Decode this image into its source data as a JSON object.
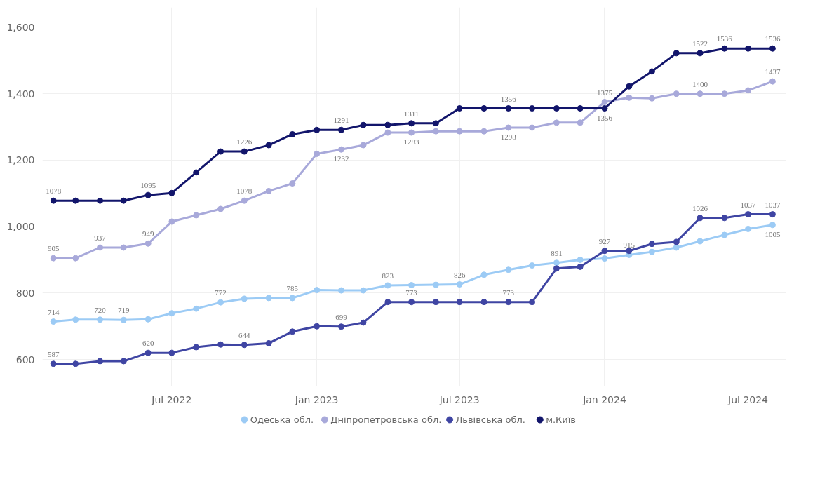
{
  "chart_data": {
    "type": "line",
    "x": [
      "2022-02",
      "2022-03",
      "2022-04",
      "2022-05",
      "2022-06",
      "2022-07",
      "2022-08",
      "2022-09",
      "2022-10",
      "2022-11",
      "2022-12",
      "2023-01",
      "2023-02",
      "2023-03",
      "2023-04",
      "2023-05",
      "2023-06",
      "2023-07",
      "2023-08",
      "2023-09",
      "2023-10",
      "2023-11",
      "2023-12",
      "2024-01",
      "2024-02",
      "2024-03",
      "2024-04",
      "2024-05",
      "2024-06",
      "2024-07",
      "2024-08"
    ],
    "series": [
      {
        "name": "Одеська обл.",
        "color": "#9ccbf5",
        "values": [
          714,
          720,
          720,
          719,
          721,
          739,
          753,
          772,
          783,
          785,
          785,
          809,
          808,
          808,
          823,
          824,
          825,
          826,
          855,
          870,
          883,
          891,
          900,
          904,
          915,
          924,
          937,
          956,
          975,
          993,
          1005
        ],
        "value_labels": [
          "714",
          null,
          "720",
          "719",
          null,
          null,
          null,
          "772",
          null,
          null,
          "785",
          null,
          null,
          null,
          "823",
          null,
          null,
          "826",
          null,
          null,
          null,
          "891",
          null,
          null,
          "915",
          null,
          null,
          null,
          null,
          null,
          "1005"
        ]
      },
      {
        "name": "Дніпропетровська обл.",
        "color": "#a8a9da",
        "values": [
          905,
          905,
          937,
          937,
          949,
          1015,
          1034,
          1053,
          1078,
          1107,
          1130,
          1219,
          1232,
          1245,
          1283,
          1283,
          1287,
          1287,
          1287,
          1298,
          1298,
          1313,
          1313,
          1375,
          1388,
          1386,
          1400,
          1400,
          1400,
          1410,
          1437
        ],
        "value_labels": [
          "905",
          null,
          "937",
          null,
          "949",
          null,
          null,
          null,
          "1078",
          null,
          null,
          null,
          "1232",
          null,
          null,
          "1283",
          null,
          null,
          null,
          "1298",
          null,
          null,
          null,
          "1375",
          null,
          null,
          null,
          "1400",
          null,
          null,
          "1437"
        ]
      },
      {
        "name": "Львівська обл.",
        "color": "#3f45a3",
        "values": [
          587,
          587,
          595,
          595,
          620,
          620,
          637,
          645,
          644,
          649,
          684,
          700,
          699,
          711,
          773,
          773,
          773,
          773,
          773,
          773,
          773,
          874,
          879,
          927,
          927,
          948,
          954,
          1026,
          1026,
          1037,
          1037
        ],
        "value_labels": [
          "587",
          null,
          null,
          null,
          "620",
          null,
          null,
          null,
          "644",
          null,
          null,
          null,
          "699",
          null,
          null,
          "773",
          null,
          null,
          null,
          "773",
          null,
          null,
          null,
          "927",
          null,
          null,
          null,
          "1026",
          null,
          "1037",
          "1037"
        ]
      },
      {
        "name": "м.Київ",
        "color": "#12156b",
        "values": [
          1078,
          1078,
          1078,
          1078,
          1095,
          1101,
          1163,
          1226,
          1226,
          1245,
          1278,
          1291,
          1291,
          1306,
          1306,
          1311,
          1311,
          1356,
          1356,
          1356,
          1356,
          1356,
          1356,
          1356,
          1422,
          1467,
          1522,
          1522,
          1536,
          1536,
          1536
        ],
        "value_labels": [
          "1078",
          null,
          null,
          null,
          "1095",
          null,
          null,
          null,
          "1226",
          null,
          null,
          null,
          "1291",
          null,
          null,
          "1311",
          null,
          null,
          null,
          "1356",
          null,
          null,
          null,
          "1356",
          null,
          null,
          null,
          "1522",
          "1536",
          null,
          "1536"
        ]
      }
    ],
    "xlim": [
      "2022-01-18",
      "2024-08-18"
    ],
    "xticks": [
      {
        "value": "2022-07",
        "label": "Jul 2022"
      },
      {
        "value": "2023-01",
        "label": "Jan 2023"
      },
      {
        "value": "2023-07",
        "label": "Jul 2023"
      },
      {
        "value": "2024-01",
        "label": "Jan 2024"
      },
      {
        "value": "2024-07",
        "label": "Jul 2024"
      }
    ],
    "ylim": [
      520,
      1660
    ],
    "yticks": [
      {
        "value": 600,
        "label": "600"
      },
      {
        "value": 800,
        "label": "800"
      },
      {
        "value": 1000,
        "label": "1,000"
      },
      {
        "value": 1200,
        "label": "1,200"
      },
      {
        "value": 1400,
        "label": "1,400"
      },
      {
        "value": 1600,
        "label": "1,600"
      }
    ],
    "grid": true,
    "legend": "bottom",
    "marker": "circle",
    "line_style": "solid"
  }
}
